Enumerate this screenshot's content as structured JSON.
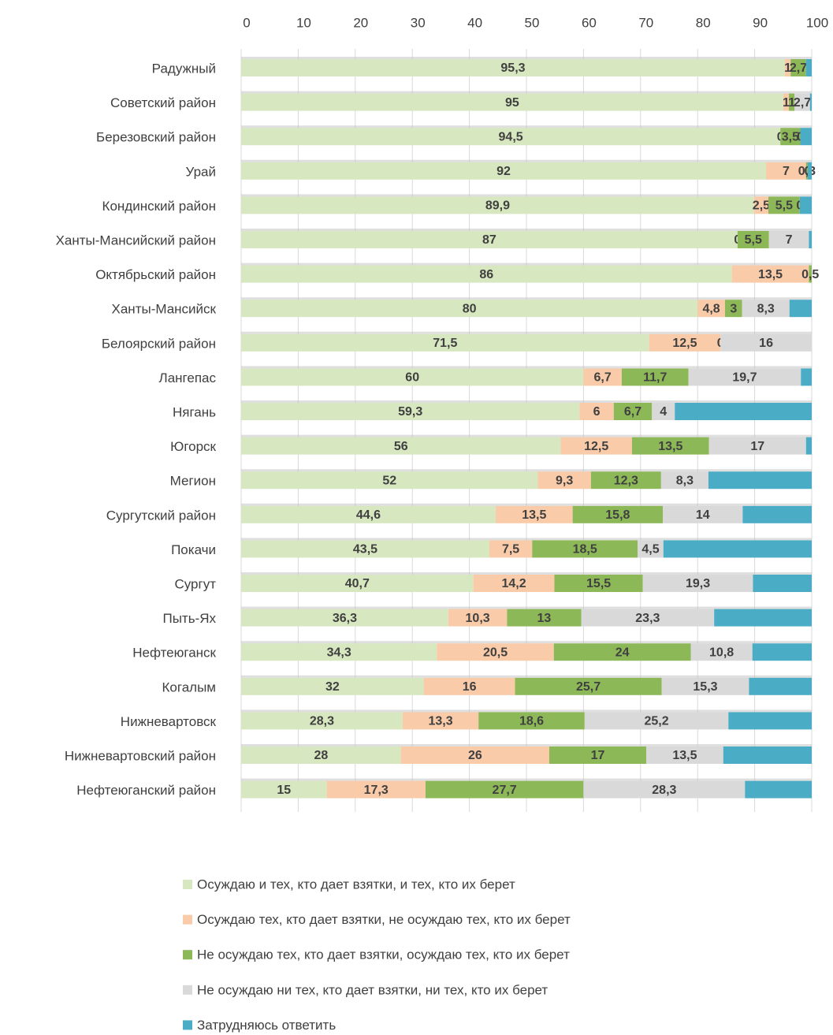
{
  "chart_data": {
    "type": "stacked_barh",
    "categories": [
      "Радужный",
      "Советский район",
      "Березовский район",
      "Урай",
      "Кондинский район",
      "Ханты-Мансийский район",
      "Октябрьский район",
      "Ханты-Мансийск",
      "Белоярский район",
      "Лангепас",
      "Нягань",
      "Югорск",
      "Мегион",
      "Сургутский район",
      "Покачи",
      "Сургут",
      "Пыть-Ях",
      "Нефтеюганск",
      "Когалым",
      "Нижневартовск",
      "Нижневартовский район",
      "Нефтеюганский район"
    ],
    "series": [
      {
        "name": "Осуждаю и тех, кто дает взятки, и тех, кто их берет",
        "color": "#d7e7bf",
        "values": [
          95.3,
          95,
          94.5,
          92,
          89.9,
          87,
          86,
          80,
          71.5,
          60,
          59.3,
          56,
          52,
          44.6,
          43.5,
          40.7,
          36.3,
          34.3,
          32,
          28.3,
          28,
          15
        ],
        "value_labels": [
          "95,3",
          "95",
          "94,5",
          "92",
          "89,9",
          "87",
          "86",
          "80",
          "71,5",
          "60",
          "59,3",
          "56",
          "52",
          "44,6",
          "43,5",
          "40,7",
          "36,3",
          "34,3",
          "32",
          "28,3",
          "28",
          "15"
        ]
      },
      {
        "name": "Осуждаю тех, кто дает взятки, не осуждаю тех, кто их берет",
        "color": "#f9cba8",
        "values": [
          1,
          1,
          0,
          7,
          2.5,
          0,
          13.5,
          4.8,
          12.5,
          6.7,
          6,
          12.5,
          9.3,
          13.5,
          7.5,
          14.2,
          10.3,
          20.5,
          16,
          13.3,
          26,
          17.3
        ],
        "value_labels": [
          "1",
          "1",
          "0",
          "7",
          "2,5",
          "0",
          "13,5",
          "4,8",
          "12,5",
          "6,7",
          "6",
          "12,5",
          "9,3",
          "13,5",
          "7,5",
          "14,2",
          "10,3",
          "20,5",
          "16",
          "13,3",
          "26",
          "17,3"
        ]
      },
      {
        "name": "Не осуждаю тех, кто дает взятки, осуждаю тех, кто их берет",
        "color": "#8db858",
        "values": [
          2.7,
          1,
          3.5,
          0.3,
          5.5,
          5.5,
          0.5,
          3,
          0,
          11.7,
          6.7,
          13.5,
          12.3,
          15.8,
          18.5,
          15.5,
          13,
          24,
          25.7,
          18.6,
          17,
          27.7
        ],
        "value_labels": [
          "2,7",
          "1",
          "3,5",
          "0,3",
          "5,5",
          "5,5",
          "0,5",
          "3",
          "0",
          "11,7",
          "6,7",
          "13,5",
          "12,3",
          "15,8",
          "18,5",
          "15,5",
          "13",
          "24",
          "25,7",
          "18,6",
          "17",
          "27,7"
        ]
      },
      {
        "name": "Не осуждаю ни тех, кто дает взятки, ни тех, кто их берет",
        "color": "#d9d9d9",
        "values": [
          0,
          2.7,
          0,
          0,
          0,
          7,
          0,
          8.3,
          16,
          19.7,
          4,
          17,
          8.3,
          14,
          4.5,
          19.3,
          23.3,
          10.8,
          15.3,
          25.2,
          13.5,
          28.3
        ],
        "value_labels": [
          null,
          "2,7",
          "0",
          "0",
          "0",
          "7",
          null,
          "8,3",
          "16",
          "19,7",
          "4",
          "17",
          "8,3",
          "14",
          "4,5",
          "19,3",
          "23,3",
          "10,8",
          "15,3",
          "25,2",
          "13,5",
          "28,3"
        ]
      },
      {
        "name": "Затрудняюсь ответить",
        "color": "#4bacc6",
        "values": [
          1,
          0.3,
          2,
          0.7,
          2.1,
          0.5,
          0,
          3.9,
          0,
          1.9,
          24,
          1,
          18.1,
          12.1,
          26,
          10.3,
          17.1,
          10.4,
          11,
          14.6,
          15.5,
          11.7
        ]
      }
    ],
    "xlim": [
      0,
      100
    ],
    "xticks": [
      0,
      10,
      20,
      30,
      40,
      50,
      60,
      70,
      80,
      90,
      100
    ],
    "grid": true,
    "legend": "bottom"
  }
}
